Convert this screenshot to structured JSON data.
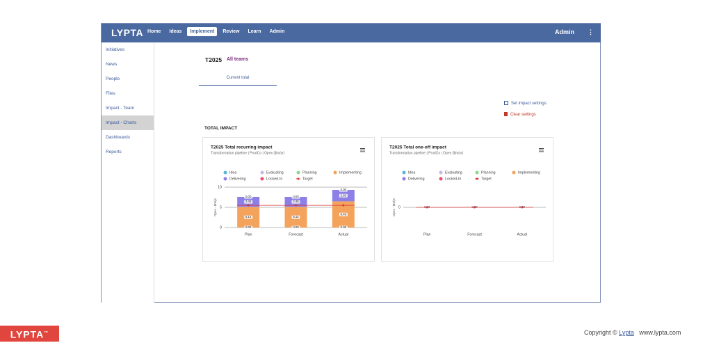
{
  "header": {
    "logo": "LYPTA",
    "nav": [
      "Home",
      "Ideas",
      "Implement",
      "Review",
      "Learn",
      "Admin"
    ],
    "user": "Admin"
  },
  "sidebar": [
    "Initiatives",
    "News",
    "People",
    "Files",
    "Impact - Team",
    "Impact - Charts",
    "Dashboards",
    "Reports"
  ],
  "main": {
    "period": "T2025",
    "teams": "All teams",
    "tab": "Current total",
    "actions": [
      "Set impact settings",
      "Clear settings"
    ],
    "section": "TOTAL IMPACT"
  },
  "chart_data": [
    {
      "type": "bar",
      "stacked": true,
      "title": "T2025 Total recurring impact",
      "subtitle": "Transformation pipeline | ProdCo | Opex ($m/yr)",
      "y_label": "Opex - $m/yr",
      "categories": [
        "Plan",
        "Forecast",
        "Actual"
      ],
      "ylim": [
        0,
        10
      ],
      "yticks": [
        0,
        5,
        10
      ],
      "series": [
        {
          "name": "Idea",
          "color": "#5bb6d6",
          "values": [
            0,
            0,
            0
          ],
          "value_labels": [
            "0.00",
            "0.00",
            "0.00"
          ]
        },
        {
          "name": "Evaluating",
          "color": "#c9b6e4",
          "values": [
            0,
            0,
            0
          ]
        },
        {
          "name": "Planning",
          "color": "#88d98c",
          "values": [
            0,
            0,
            0
          ]
        },
        {
          "name": "Implementing",
          "color": "#f3a35c",
          "values": [
            5.14,
            5.14,
            6.48
          ]
        },
        {
          "name": "Delivering",
          "color": "#8c7fe6",
          "values": [
            2.45,
            2.45,
            2.83
          ]
        },
        {
          "name": "Locked-In",
          "color": "#e8506a",
          "values": [
            0,
            0,
            0
          ],
          "value_labels": [
            "0.00",
            "0.00",
            "0.00"
          ]
        },
        {
          "name": "Target",
          "color": "#d9343a",
          "type": "line",
          "values": [
            5.5,
            5.5,
            5.5
          ]
        }
      ]
    },
    {
      "type": "bar",
      "stacked": true,
      "title": "T2025 Total one-off impact",
      "subtitle": "Transformation pipeline | ProdCo | Opex ($m/yr)",
      "y_label": "Opex - $m/yr",
      "categories": [
        "Plan",
        "Forecast",
        "Actual"
      ],
      "ylim": [
        -1,
        1
      ],
      "yticks": [
        0
      ],
      "series": [
        {
          "name": "Idea",
          "color": "#5bb6d6",
          "values": [
            0,
            0,
            0
          ],
          "value_labels": [
            "0.00",
            "0.00",
            "0.00"
          ]
        },
        {
          "name": "Evaluating",
          "color": "#c9b6e4",
          "values": [
            0,
            0,
            0
          ]
        },
        {
          "name": "Planning",
          "color": "#88d98c",
          "values": [
            0,
            0,
            0
          ]
        },
        {
          "name": "Implementing",
          "color": "#f3a35c",
          "values": [
            0,
            0,
            0
          ]
        },
        {
          "name": "Delivering",
          "color": "#8c7fe6",
          "values": [
            0,
            0,
            0
          ]
        },
        {
          "name": "Locked-In",
          "color": "#e8506a",
          "values": [
            0,
            0,
            0
          ]
        },
        {
          "name": "Target",
          "color": "#d9343a",
          "type": "line",
          "values": [
            0,
            0,
            0
          ]
        }
      ]
    }
  ],
  "footer": {
    "logo": "LYPTA",
    "tm": "™",
    "copyright": "Copyright ©",
    "link": "Lypta",
    "site": "www.lypta.com"
  }
}
